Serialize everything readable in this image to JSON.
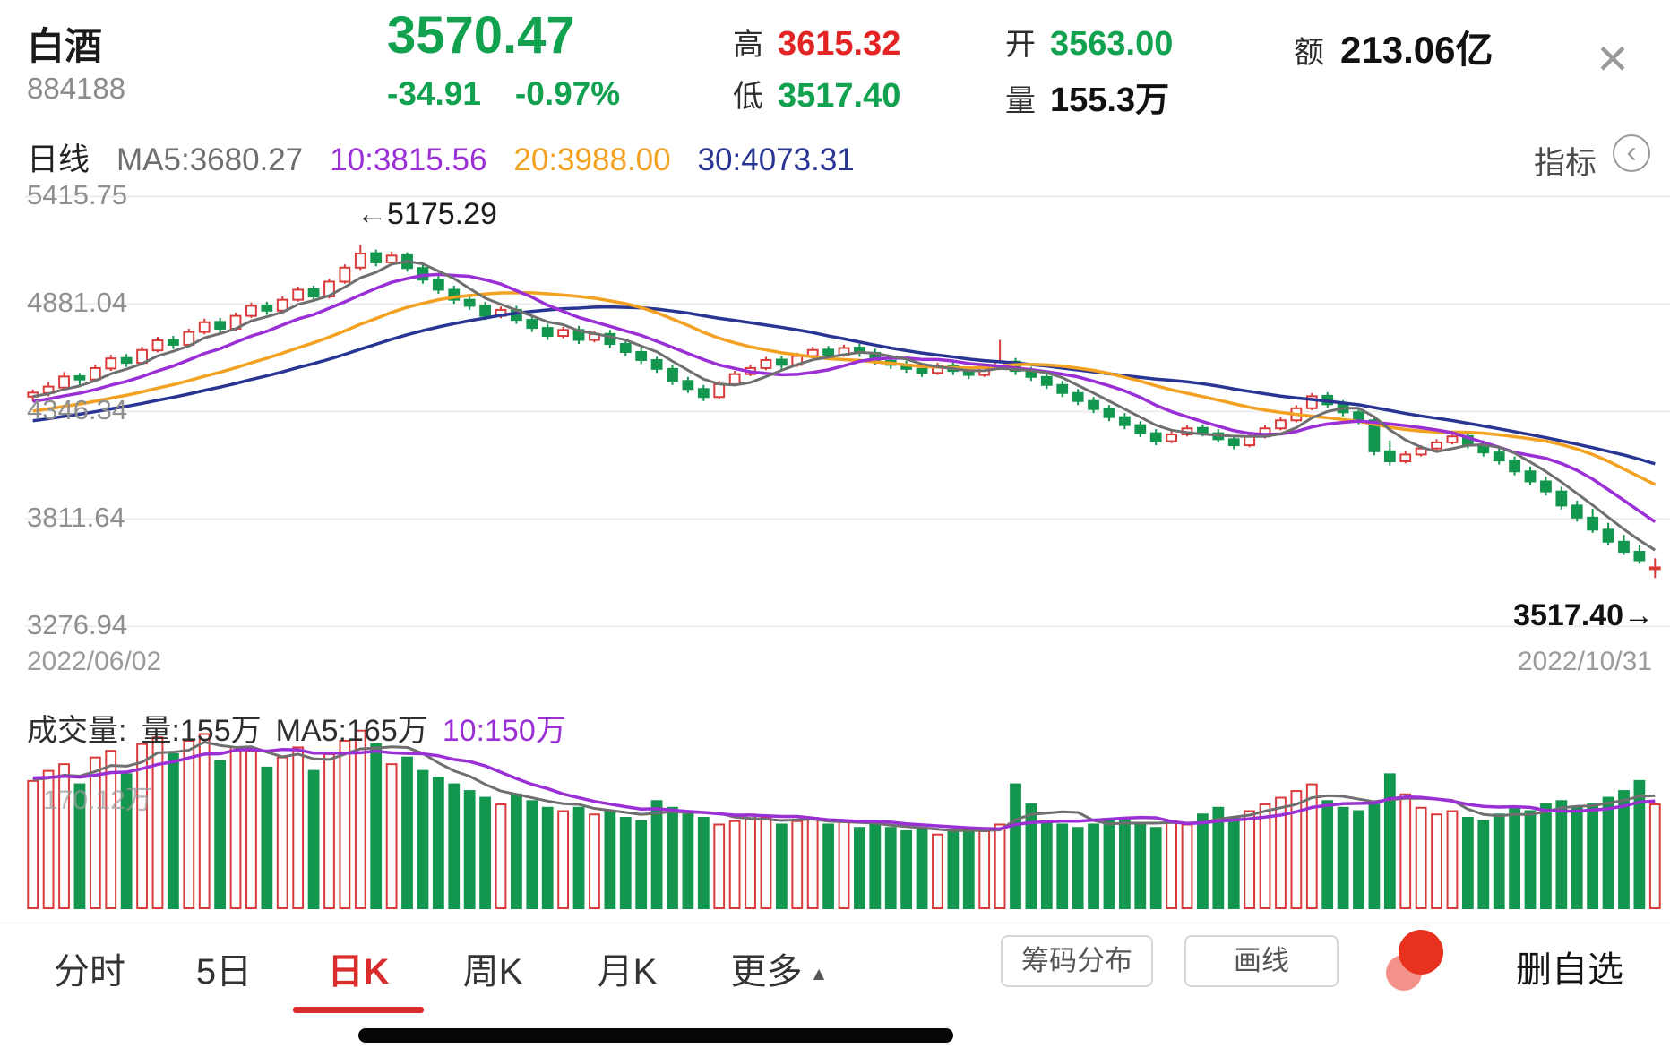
{
  "colors": {
    "up": "#db3a3a",
    "down": "#13964e",
    "price_green": "#11a14f",
    "price_red": "#e22424",
    "ma5": "#6f6f6f",
    "ma10": "#9b2fd6",
    "ma20": "#f3a120",
    "ma30": "#283593",
    "grid": "#ededed",
    "tab_active": "#d92c2c"
  },
  "header": {
    "name": "白酒",
    "code": "884188",
    "price": "3570.47",
    "change": "-34.91",
    "change_pct": "-0.97%",
    "high_label": "高",
    "high": "3615.32",
    "low_label": "低",
    "low": "3517.40",
    "open_label": "开",
    "open": "3563.00",
    "volume_label": "量",
    "volume": "155.3万",
    "amount_label": "额",
    "amount": "213.06亿",
    "close_icon": "✕"
  },
  "ma_bar": {
    "period": "日线",
    "ma5": "MA5:3680.27",
    "ma10": "10:3815.56",
    "ma20": "20:3988.00",
    "ma30": "30:4073.31",
    "indicator": "指标",
    "indicator_icon": "‹"
  },
  "chart": {
    "y_labels": [
      "5415.75",
      "4881.04",
      "4346.34",
      "3811.64",
      "3276.94"
    ],
    "peak_annotation": "←5175.29",
    "last_annotation": "3517.40→",
    "date_start": "2022/06/02",
    "date_end": "2022/10/31"
  },
  "volume_pane": {
    "label": "成交量:",
    "vol_text": "量:155万",
    "ma5_text": "MA5:165万",
    "ma10_text": "10:150万",
    "axis_max_label": "170.12万"
  },
  "tab_bar": {
    "tabs": [
      {
        "label": "分时"
      },
      {
        "label": "5日"
      },
      {
        "label": "日K"
      },
      {
        "label": "周K"
      },
      {
        "label": "月K"
      },
      {
        "label": "更多"
      }
    ],
    "active_index": 2,
    "more_caret": "▲"
  },
  "actions": {
    "chip_chouma": "筹码分布",
    "chip_huaxian": "画线",
    "delete_watch": "删自选"
  },
  "chart_data": {
    "type": "candlestick",
    "title": "白酒 884188 日K",
    "date_start": "2022/06/02",
    "date_end": "2022/10/31",
    "ylim": [
      3276.94,
      5415.75
    ],
    "grid_values": [
      5415.75,
      4881.04,
      4346.34,
      3811.64,
      3276.94
    ],
    "peak_value": 5175.29,
    "last_low": 3517.4,
    "last_close": 3570.47,
    "ma_display": {
      "ma5": 3680.27,
      "ma10": 3815.56,
      "ma20": 3988.0,
      "ma30": 4073.31
    },
    "vol_ma_display_wan": {
      "vol": 155,
      "ma5": 165,
      "ma10": 150
    },
    "ohlc": [
      [
        4420,
        4455,
        4395,
        4440
      ],
      [
        4438,
        4492,
        4422,
        4470
      ],
      [
        4465,
        4542,
        4455,
        4520
      ],
      [
        4522,
        4538,
        4478,
        4505
      ],
      [
        4505,
        4578,
        4495,
        4562
      ],
      [
        4560,
        4628,
        4548,
        4610
      ],
      [
        4612,
        4632,
        4568,
        4588
      ],
      [
        4588,
        4668,
        4578,
        4652
      ],
      [
        4650,
        4718,
        4640,
        4700
      ],
      [
        4702,
        4722,
        4658,
        4678
      ],
      [
        4678,
        4758,
        4668,
        4742
      ],
      [
        4742,
        4808,
        4730,
        4790
      ],
      [
        4792,
        4812,
        4738,
        4758
      ],
      [
        4758,
        4838,
        4748,
        4822
      ],
      [
        4822,
        4888,
        4812,
        4872
      ],
      [
        4874,
        4892,
        4828,
        4848
      ],
      [
        4848,
        4918,
        4838,
        4902
      ],
      [
        4902,
        4968,
        4892,
        4952
      ],
      [
        4954,
        4972,
        4898,
        4918
      ],
      [
        4918,
        5008,
        4908,
        4992
      ],
      [
        4992,
        5078,
        4982,
        5062
      ],
      [
        5062,
        5175,
        5050,
        5132
      ],
      [
        5134,
        5152,
        5068,
        5088
      ],
      [
        5088,
        5142,
        5074,
        5122
      ],
      [
        5124,
        5138,
        5042,
        5060
      ],
      [
        5060,
        5082,
        4982,
        5002
      ],
      [
        5002,
        5022,
        4932,
        4952
      ],
      [
        4952,
        4972,
        4882,
        4902
      ],
      [
        4902,
        4928,
        4852,
        4872
      ],
      [
        4872,
        4892,
        4802,
        4822
      ],
      [
        4822,
        4868,
        4810,
        4852
      ],
      [
        4852,
        4872,
        4782,
        4802
      ],
      [
        4802,
        4822,
        4742,
        4762
      ],
      [
        4762,
        4782,
        4702,
        4722
      ],
      [
        4722,
        4768,
        4710,
        4752
      ],
      [
        4752,
        4772,
        4682,
        4702
      ],
      [
        4702,
        4748,
        4690,
        4732
      ],
      [
        4732,
        4752,
        4662,
        4682
      ],
      [
        4682,
        4702,
        4622,
        4642
      ],
      [
        4642,
        4662,
        4582,
        4602
      ],
      [
        4602,
        4618,
        4538,
        4558
      ],
      [
        4558,
        4578,
        4478,
        4498
      ],
      [
        4498,
        4518,
        4438,
        4458
      ],
      [
        4458,
        4478,
        4398,
        4418
      ],
      [
        4418,
        4498,
        4408,
        4482
      ],
      [
        4482,
        4548,
        4472,
        4532
      ],
      [
        4532,
        4578,
        4522,
        4562
      ],
      [
        4562,
        4618,
        4552,
        4602
      ],
      [
        4604,
        4622,
        4558,
        4578
      ],
      [
        4578,
        4638,
        4568,
        4622
      ],
      [
        4622,
        4668,
        4612,
        4652
      ],
      [
        4654,
        4672,
        4608,
        4628
      ],
      [
        4628,
        4678,
        4618,
        4662
      ],
      [
        4664,
        4682,
        4618,
        4638
      ],
      [
        4638,
        4658,
        4578,
        4598
      ],
      [
        4598,
        4618,
        4558,
        4578
      ],
      [
        4578,
        4598,
        4538,
        4558
      ],
      [
        4558,
        4578,
        4518,
        4538
      ],
      [
        4538,
        4588,
        4528,
        4572
      ],
      [
        4574,
        4592,
        4528,
        4548
      ],
      [
        4548,
        4568,
        4508,
        4528
      ],
      [
        4528,
        4578,
        4518,
        4562
      ],
      [
        4562,
        4702,
        4552,
        4592
      ],
      [
        4594,
        4612,
        4528,
        4548
      ],
      [
        4548,
        4568,
        4498,
        4518
      ],
      [
        4518,
        4538,
        4458,
        4478
      ],
      [
        4478,
        4498,
        4418,
        4438
      ],
      [
        4438,
        4458,
        4378,
        4398
      ],
      [
        4398,
        4418,
        4338,
        4358
      ],
      [
        4358,
        4378,
        4298,
        4318
      ],
      [
        4318,
        4338,
        4258,
        4278
      ],
      [
        4278,
        4298,
        4218,
        4238
      ],
      [
        4238,
        4258,
        4178,
        4198
      ],
      [
        4198,
        4248,
        4188,
        4232
      ],
      [
        4232,
        4278,
        4222,
        4262
      ],
      [
        4264,
        4282,
        4222,
        4238
      ],
      [
        4238,
        4258,
        4192,
        4208
      ],
      [
        4208,
        4228,
        4158,
        4178
      ],
      [
        4178,
        4238,
        4168,
        4222
      ],
      [
        4222,
        4278,
        4212,
        4262
      ],
      [
        4262,
        4318,
        4252,
        4302
      ],
      [
        4302,
        4378,
        4292,
        4362
      ],
      [
        4362,
        4438,
        4352,
        4422
      ],
      [
        4424,
        4442,
        4362,
        4382
      ],
      [
        4382,
        4402,
        4322,
        4342
      ],
      [
        4342,
        4362,
        4282,
        4302
      ],
      [
        4302,
        4322,
        4128,
        4148
      ],
      [
        4148,
        4202,
        4078,
        4098
      ],
      [
        4098,
        4148,
        4088,
        4132
      ],
      [
        4132,
        4178,
        4122,
        4162
      ],
      [
        4162,
        4208,
        4152,
        4192
      ],
      [
        4192,
        4238,
        4182,
        4222
      ],
      [
        4224,
        4242,
        4162,
        4182
      ],
      [
        4182,
        4202,
        4122,
        4142
      ],
      [
        4142,
        4162,
        4082,
        4102
      ],
      [
        4102,
        4122,
        4028,
        4048
      ],
      [
        4048,
        4072,
        3978,
        3998
      ],
      [
        3998,
        4022,
        3928,
        3948
      ],
      [
        3948,
        3972,
        3858,
        3878
      ],
      [
        3878,
        3902,
        3798,
        3818
      ],
      [
        3818,
        3862,
        3742,
        3758
      ],
      [
        3758,
        3792,
        3682,
        3698
      ],
      [
        3698,
        3732,
        3632,
        3648
      ],
      [
        3648,
        3682,
        3588,
        3605.38
      ],
      [
        3563,
        3615.32,
        3517.4,
        3570.47
      ]
    ],
    "volumes_wan": [
      190,
      205,
      215,
      185,
      225,
      235,
      200,
      245,
      255,
      230,
      250,
      260,
      220,
      240,
      235,
      210,
      225,
      240,
      205,
      230,
      250,
      265,
      245,
      215,
      225,
      205,
      195,
      185,
      175,
      165,
      155,
      170,
      160,
      150,
      145,
      150,
      140,
      145,
      135,
      130,
      160,
      150,
      140,
      135,
      125,
      130,
      140,
      135,
      125,
      130,
      135,
      125,
      130,
      120,
      125,
      120,
      115,
      120,
      110,
      115,
      120,
      115,
      125,
      185,
      155,
      130,
      125,
      120,
      125,
      130,
      135,
      125,
      120,
      130,
      125,
      140,
      150,
      135,
      145,
      155,
      165,
      175,
      185,
      160,
      150,
      145,
      155,
      200,
      170,
      150,
      140,
      145,
      135,
      130,
      140,
      150,
      145,
      155,
      160,
      150,
      155,
      165,
      175,
      190,
      155
    ]
  }
}
